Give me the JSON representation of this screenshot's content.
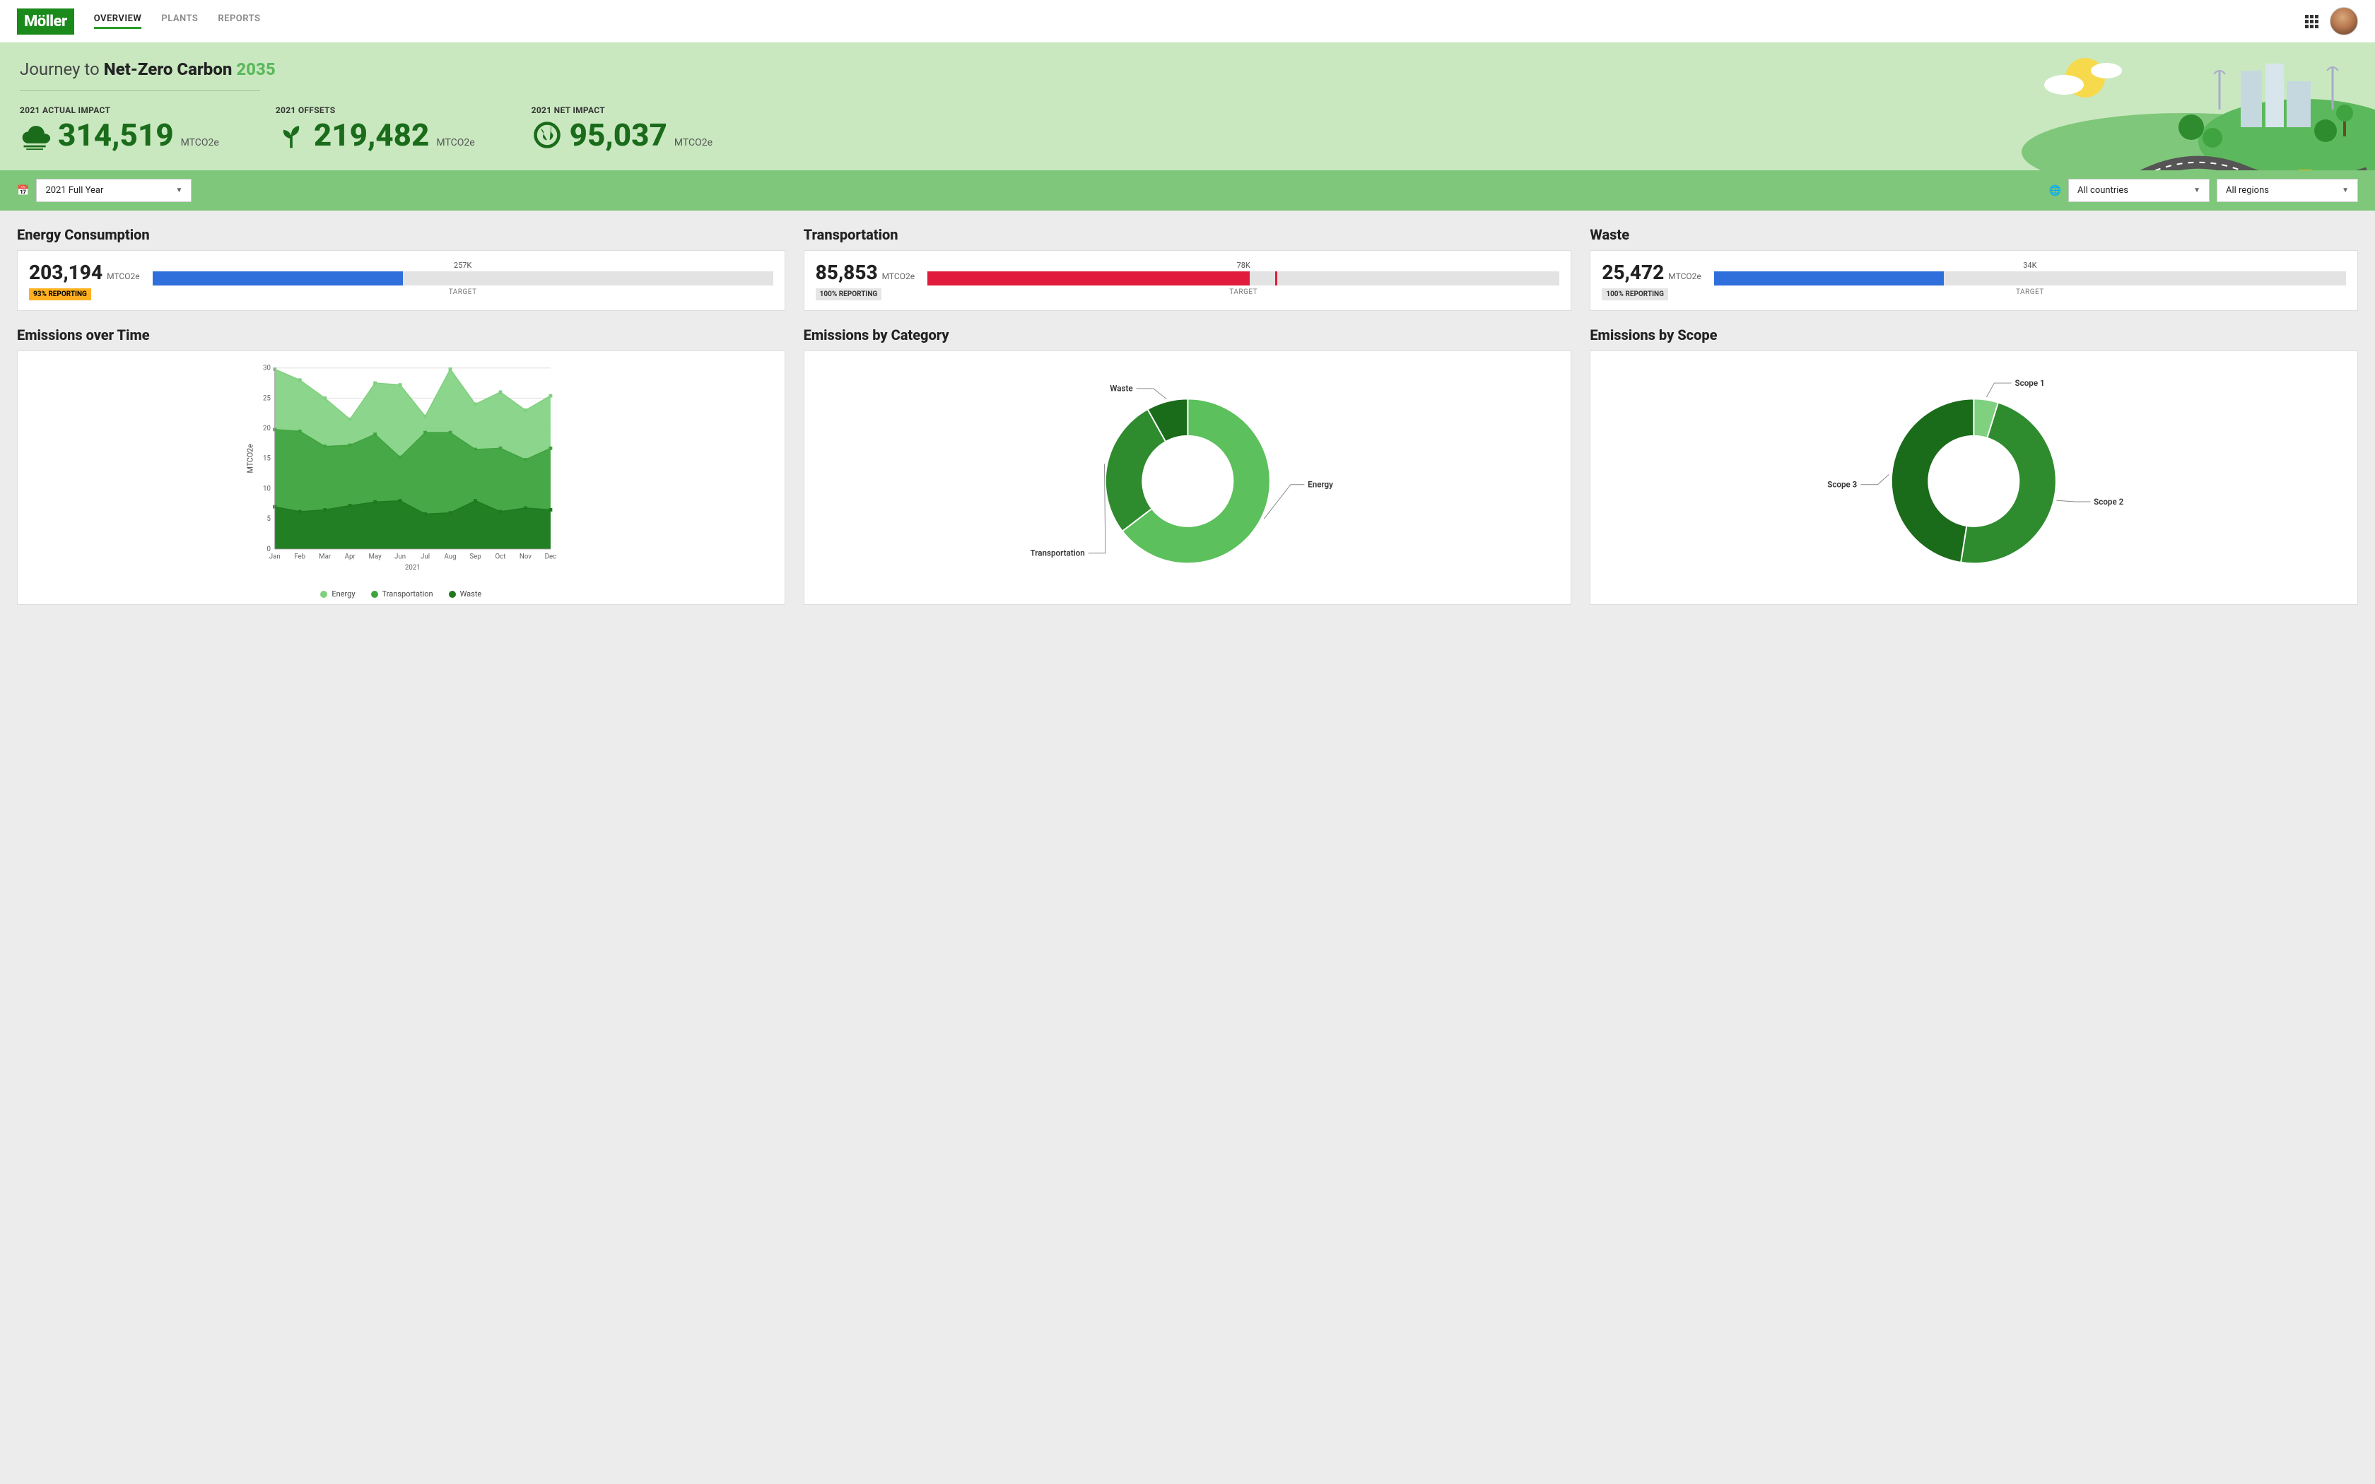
{
  "brand": {
    "name": "Möller",
    "logo_bg": "#1a8a1a",
    "logo_fg": "#ffffff"
  },
  "nav": {
    "items": [
      {
        "label": "OVERVIEW",
        "active": true
      },
      {
        "label": "PLANTS",
        "active": false
      },
      {
        "label": "REPORTS",
        "active": false
      }
    ]
  },
  "hero": {
    "title_prefix": "Journey to ",
    "title_bold": "Net-Zero Carbon ",
    "title_year": "2035",
    "bg_color": "#c9e8c0",
    "metrics": [
      {
        "label": "2021 ACTUAL IMPACT",
        "value": "314,519",
        "unit": "MTCO2e",
        "icon": "cloud"
      },
      {
        "label": "2021 OFFSETS",
        "value": "219,482",
        "unit": "MTCO2e",
        "icon": "sprout"
      },
      {
        "label": "2021 NET IMPACT",
        "value": "95,037",
        "unit": "MTCO2e",
        "icon": "globe"
      }
    ],
    "value_color": "#1a6b1a"
  },
  "filters": {
    "period": {
      "value": "2021 Full Year"
    },
    "country": {
      "value": "All countries"
    },
    "region": {
      "value": "All regions"
    },
    "bar_bg": "#7fc77a"
  },
  "kpis": [
    {
      "title": "Energy Consumption",
      "value": "203,194",
      "unit": "MTCO2e",
      "badge": "93% REPORTING",
      "badge_style": "warn",
      "target_label": "257K",
      "target_caption": "TARGET",
      "bar": {
        "fill_pct": 40,
        "marker_pct": 40,
        "fill_color": "#2e6fdb",
        "marker_color": "#2e6fdb",
        "track_color": "#e3e3e3"
      }
    },
    {
      "title": "Transportation",
      "value": "85,853",
      "unit": "MTCO2e",
      "badge": "100% REPORTING",
      "badge_style": "ok",
      "target_label": "78K",
      "target_caption": "TARGET",
      "bar": {
        "fill_pct": 51,
        "marker_pct": 55,
        "fill_color": "#e11b3c",
        "marker_color": "#e11b3c",
        "track_color": "#e3e3e3"
      }
    },
    {
      "title": "Waste",
      "value": "25,472",
      "unit": "MTCO2e",
      "badge": "100% REPORTING",
      "badge_style": "ok",
      "target_label": "34K",
      "target_caption": "TARGET",
      "bar": {
        "fill_pct": 36,
        "marker_pct": 36,
        "fill_color": "#2e6fdb",
        "marker_color": "#2e6fdb",
        "track_color": "#e3e3e3"
      }
    }
  ],
  "emissions_over_time": {
    "title": "Emissions over Time",
    "type": "stacked-area",
    "x_categories": [
      "Jan",
      "Feb",
      "Mar",
      "Apr",
      "May",
      "Jun",
      "Jul",
      "Aug",
      "Sep",
      "Oct",
      "Nov",
      "Dec"
    ],
    "x_axis_title": "2021",
    "y_label": "MTCO2e",
    "ylim": [
      0,
      30
    ],
    "ytick_step": 5,
    "series": [
      {
        "name": "Waste",
        "color": "#1f7a1f",
        "values": [
          7.0,
          6.2,
          6.5,
          7.2,
          7.8,
          8.0,
          5.8,
          6.0,
          8.0,
          6.2,
          6.8,
          6.5
        ]
      },
      {
        "name": "Transportation",
        "color": "#3fa33f",
        "values": [
          12.8,
          13.3,
          10.5,
          10.0,
          11.2,
          7.2,
          13.5,
          13.3,
          8.5,
          10.5,
          8.0,
          10.2
        ]
      },
      {
        "name": "Energy",
        "color": "#7fd07f",
        "values": [
          10.0,
          8.5,
          8.0,
          4.3,
          8.5,
          12.0,
          2.7,
          10.5,
          7.5,
          9.3,
          8.2,
          8.7
        ]
      }
    ],
    "legend": [
      "Energy",
      "Transportation",
      "Waste"
    ],
    "legend_colors": [
      "#7fd07f",
      "#3fa33f",
      "#1f7a1f"
    ],
    "grid_color": "#dddddd",
    "background_color": "#ffffff",
    "label_fontsize": 10
  },
  "emissions_by_category": {
    "title": "Emissions by Category",
    "type": "donut",
    "inner_radius_pct": 55,
    "slices": [
      {
        "label": "Energy",
        "value": 203194,
        "pct": 64.6,
        "color": "#5cc05c"
      },
      {
        "label": "Transportation",
        "value": 85853,
        "pct": 27.3,
        "color": "#2e8b2e"
      },
      {
        "label": "Waste",
        "value": 25472,
        "pct": 8.1,
        "color": "#1a6b1a"
      }
    ],
    "background_color": "#ffffff",
    "label_fontsize": 12
  },
  "emissions_by_scope": {
    "title": "Emissions by Scope",
    "type": "donut",
    "inner_radius_pct": 55,
    "slices": [
      {
        "label": "Scope 1",
        "value": 15000,
        "pct": 4.8,
        "color": "#7fd07f"
      },
      {
        "label": "Scope 2",
        "value": 150000,
        "pct": 47.7,
        "color": "#2e8b2e"
      },
      {
        "label": "Scope 3",
        "value": 149519,
        "pct": 47.5,
        "color": "#1a6b1a"
      }
    ],
    "background_color": "#ffffff",
    "label_fontsize": 12
  }
}
